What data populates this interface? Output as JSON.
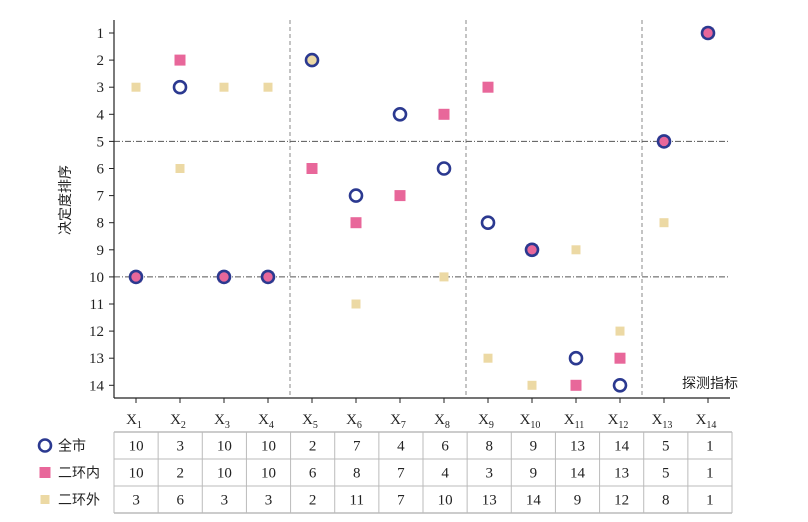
{
  "chart_data": {
    "type": "scatter",
    "ylabel": "决定度排序",
    "corner_label": "探测指标",
    "x_categories": [
      {
        "base": "X",
        "sub": "1"
      },
      {
        "base": "X",
        "sub": "2"
      },
      {
        "base": "X",
        "sub": "3"
      },
      {
        "base": "X",
        "sub": "4"
      },
      {
        "base": "X",
        "sub": "5"
      },
      {
        "base": "X",
        "sub": "6"
      },
      {
        "base": "X",
        "sub": "7"
      },
      {
        "base": "X",
        "sub": "8"
      },
      {
        "base": "X",
        "sub": "9"
      },
      {
        "base": "X",
        "sub": "10"
      },
      {
        "base": "X",
        "sub": "11"
      },
      {
        "base": "X",
        "sub": "12"
      },
      {
        "base": "X",
        "sub": "13"
      },
      {
        "base": "X",
        "sub": "14"
      }
    ],
    "y_ticks": [
      "1",
      "2",
      "3",
      "4",
      "5",
      "6",
      "7",
      "8",
      "9",
      "10",
      "11",
      "12",
      "13",
      "14"
    ],
    "ylim": [
      1,
      14
    ],
    "y_reversed": true,
    "reference_lines_y": [
      5,
      10
    ],
    "separator_lines_after_x": [
      4,
      8,
      12
    ],
    "series": [
      {
        "name": "全市",
        "marker": "open-circle",
        "color": "#2b3990",
        "values": [
          10,
          3,
          10,
          10,
          2,
          7,
          4,
          6,
          8,
          9,
          13,
          14,
          5,
          1
        ]
      },
      {
        "name": "二环内",
        "marker": "square",
        "color": "#e8679a",
        "values": [
          10,
          2,
          10,
          10,
          6,
          8,
          7,
          4,
          3,
          9,
          14,
          13,
          5,
          1
        ]
      },
      {
        "name": "二环外",
        "marker": "small-square",
        "color": "#ecd9a4",
        "values": [
          3,
          6,
          3,
          3,
          2,
          11,
          7,
          10,
          13,
          14,
          9,
          12,
          8,
          1
        ]
      }
    ]
  }
}
